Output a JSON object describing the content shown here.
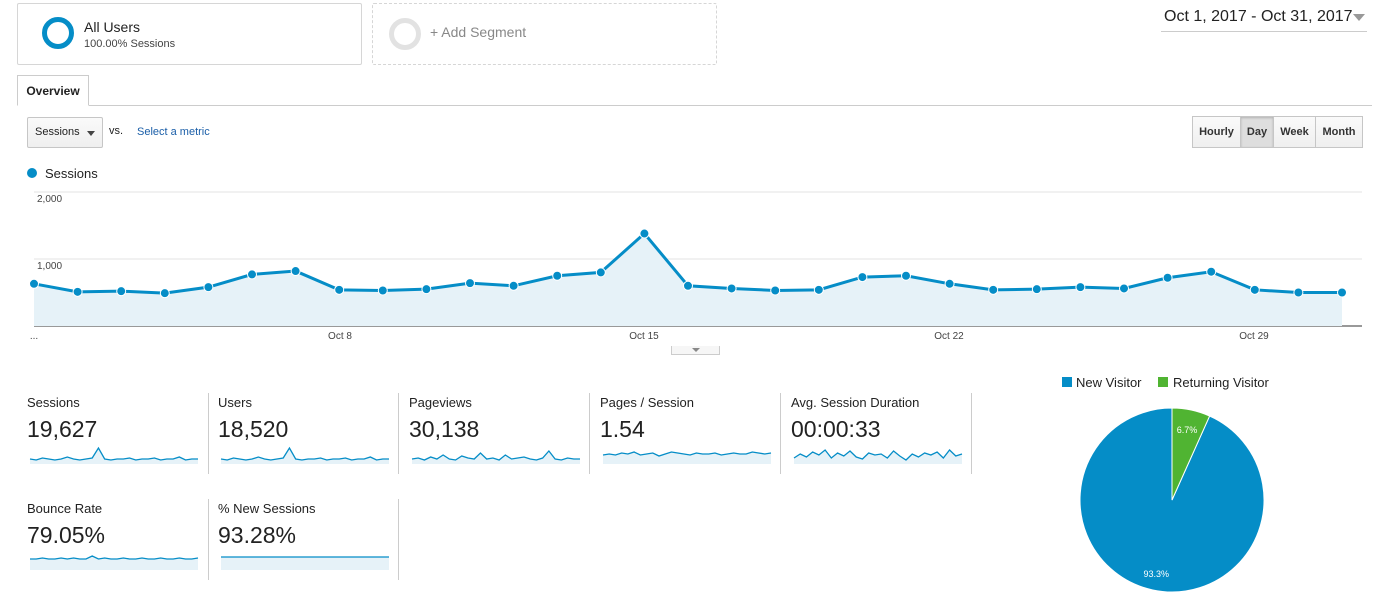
{
  "segments": {
    "active": {
      "title": "All Users",
      "subtitle": "100.00% Sessions"
    },
    "add_label": "+ Add Segment"
  },
  "date_range": "Oct 1, 2017 - Oct 31, 2017",
  "tabs": [
    {
      "label": "Overview"
    }
  ],
  "controls": {
    "metric_select": "Sessions",
    "vs_label": "vs.",
    "select_metric_link": "Select a metric",
    "granularity": [
      {
        "label": "Hourly",
        "active": false
      },
      {
        "label": "Day",
        "active": true
      },
      {
        "label": "Week",
        "active": false
      },
      {
        "label": "Month",
        "active": false
      }
    ]
  },
  "colors": {
    "accent": "#058dc7",
    "returning": "#50b432",
    "fill": "#e6f2f8",
    "link": "#1a5ea8"
  },
  "chart_data": [
    {
      "type": "area",
      "series": [
        {
          "name": "Sessions",
          "values": [
            630,
            510,
            520,
            490,
            580,
            770,
            820,
            540,
            530,
            550,
            640,
            600,
            750,
            800,
            1380,
            600,
            560,
            530,
            540,
            730,
            750,
            630,
            540,
            550,
            580,
            560,
            720,
            810,
            540,
            500,
            500
          ]
        }
      ],
      "x": [
        "Oct 1",
        "Oct 2",
        "Oct 3",
        "Oct 4",
        "Oct 5",
        "Oct 6",
        "Oct 7",
        "Oct 8",
        "Oct 9",
        "Oct 10",
        "Oct 11",
        "Oct 12",
        "Oct 13",
        "Oct 14",
        "Oct 15",
        "Oct 16",
        "Oct 17",
        "Oct 18",
        "Oct 19",
        "Oct 20",
        "Oct 21",
        "Oct 22",
        "Oct 23",
        "Oct 24",
        "Oct 25",
        "Oct 26",
        "Oct 27",
        "Oct 28",
        "Oct 29",
        "Oct 30",
        "Oct 31"
      ],
      "x_tick_labels": [
        "...",
        "Oct 8",
        "Oct 15",
        "Oct 22",
        "Oct 29"
      ],
      "y_tick_labels": [
        "1,000",
        "2,000"
      ],
      "ylim": [
        0,
        2000
      ],
      "grid": true,
      "legend": "top-left"
    },
    {
      "type": "pie",
      "categories": [
        "New Visitor",
        "Returning Visitor"
      ],
      "values": [
        93.3,
        6.7
      ],
      "slice_labels": [
        "93.3%",
        "6.7%"
      ],
      "legend": "top"
    }
  ],
  "metrics": [
    {
      "label": "Sessions",
      "value": "19,627",
      "spark": [
        5,
        4,
        6,
        5,
        4,
        5,
        7,
        5,
        4,
        5,
        6,
        16,
        5,
        4,
        5,
        5,
        6,
        4,
        5,
        5,
        6,
        4,
        5,
        5,
        7,
        4,
        5,
        5
      ]
    },
    {
      "label": "Users",
      "value": "18,520",
      "spark": [
        5,
        4,
        6,
        5,
        4,
        5,
        7,
        5,
        4,
        5,
        6,
        16,
        5,
        4,
        5,
        5,
        6,
        4,
        5,
        5,
        6,
        4,
        5,
        5,
        7,
        4,
        5,
        5
      ]
    },
    {
      "label": "Pageviews",
      "value": "30,138",
      "spark": [
        5,
        6,
        4,
        7,
        5,
        9,
        5,
        4,
        8,
        6,
        5,
        11,
        5,
        6,
        4,
        9,
        5,
        6,
        7,
        5,
        4,
        6,
        13,
        5,
        4,
        6,
        5,
        5
      ]
    },
    {
      "label": "Pages / Session",
      "value": "1.54",
      "spark": [
        9,
        10,
        9,
        11,
        10,
        12,
        9,
        10,
        11,
        8,
        10,
        12,
        11,
        10,
        9,
        11,
        10,
        10,
        11,
        9,
        10,
        11,
        10,
        10,
        12,
        11,
        10,
        11
      ]
    },
    {
      "label": "Avg. Session Duration",
      "value": "00:00:33",
      "spark": [
        6,
        10,
        7,
        12,
        9,
        14,
        6,
        11,
        8,
        13,
        7,
        5,
        11,
        9,
        10,
        6,
        13,
        8,
        4,
        10,
        7,
        11,
        9,
        12,
        6,
        14,
        8,
        10
      ]
    },
    {
      "label": "Bounce Rate",
      "value": "79.05%",
      "spark": [
        11,
        11,
        12,
        11,
        11,
        12,
        11,
        12,
        11,
        11,
        14,
        11,
        12,
        11,
        11,
        12,
        11,
        11,
        12,
        11,
        11,
        12,
        11,
        11,
        12,
        11,
        11,
        12
      ]
    },
    {
      "label": "% New Sessions",
      "value": "93.28%",
      "spark": [
        13,
        13,
        13,
        13,
        13,
        13,
        13,
        13,
        13,
        13,
        13,
        13,
        13,
        13,
        13,
        13,
        13,
        13,
        13,
        13,
        13,
        13,
        13,
        13,
        13,
        13,
        13,
        13
      ]
    }
  ]
}
